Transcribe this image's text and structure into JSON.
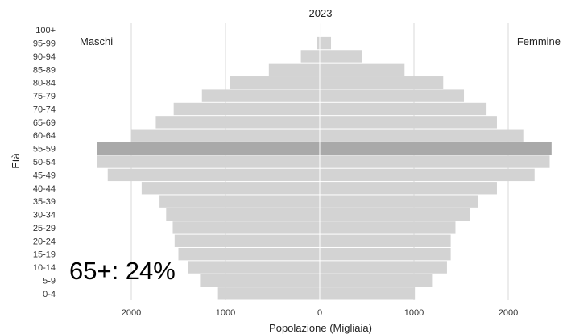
{
  "chart_data": {
    "type": "bar",
    "orientation": "horizontal-pyramid",
    "title": "2023",
    "xlabel": "Popolazione (Migliaia)",
    "ylabel": "Età",
    "categories": [
      "0-4",
      "5-9",
      "10-14",
      "15-19",
      "20-24",
      "25-29",
      "30-34",
      "35-39",
      "40-44",
      "45-49",
      "50-54",
      "55-59",
      "60-64",
      "65-69",
      "70-74",
      "75-79",
      "80-84",
      "85-89",
      "90-94",
      "95-99",
      "100+"
    ],
    "series": [
      {
        "name": "Maschi",
        "values": [
          1080,
          1270,
          1400,
          1500,
          1540,
          1560,
          1630,
          1700,
          1890,
          2250,
          2360,
          2360,
          2000,
          1740,
          1550,
          1250,
          950,
          540,
          200,
          30,
          0
        ]
      },
      {
        "name": "Femmine",
        "values": [
          1010,
          1200,
          1350,
          1390,
          1390,
          1440,
          1590,
          1680,
          1880,
          2280,
          2440,
          2460,
          2160,
          1880,
          1770,
          1530,
          1310,
          900,
          450,
          120,
          5
        ]
      }
    ],
    "highlight_category": "55-59",
    "xlim": [
      -2700,
      2500
    ],
    "xticks": [
      -2000,
      -1000,
      0,
      1000,
      2000
    ],
    "xtick_labels": [
      "2000",
      "1000",
      "0",
      "1000",
      "2000"
    ],
    "grid": true,
    "legend_placement": "top-left / top-right inline",
    "annotation": "65+: 24%",
    "colors": {
      "bar": "#d3d3d3",
      "highlight": "#a9a9a9",
      "grid": "#d9d9d9",
      "center": "#ffffff"
    }
  }
}
